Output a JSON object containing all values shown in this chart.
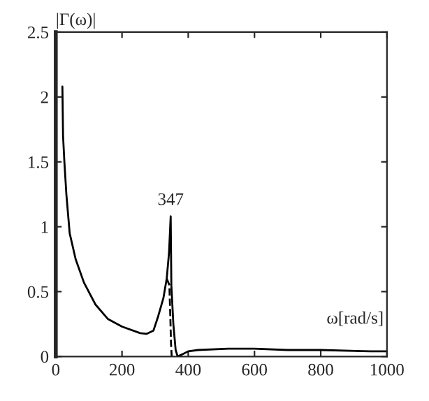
{
  "chart_data": {
    "type": "line",
    "xlabel": "ω[rad/s]",
    "ylabel": "|Γ(ω)|",
    "series": [
      {
        "color": "#000000",
        "line_style": "solid",
        "x": [
          20,
          22,
          26,
          32,
          42,
          60,
          85,
          120,
          157,
          200,
          255,
          275,
          295,
          308,
          325,
          335,
          342,
          347,
          349,
          355,
          362,
          368,
          385,
          400,
          430,
          520,
          600,
          700,
          800,
          950,
          1000
        ],
        "values": [
          2.08,
          1.7,
          1.5,
          1.25,
          0.95,
          0.75,
          0.57,
          0.4,
          0.29,
          0.23,
          0.18,
          0.175,
          0.2,
          0.3,
          0.45,
          0.6,
          0.8,
          1.08,
          0.55,
          0.25,
          0.05,
          0.0,
          0.02,
          0.04,
          0.05,
          0.06,
          0.06,
          0.05,
          0.05,
          0.04,
          0.04
        ]
      },
      {
        "color": "#000000",
        "line_style": "dashed",
        "x": [
          335,
          343,
          346,
          348,
          350
        ],
        "values": [
          0.6,
          0.55,
          0.3,
          0.1,
          0.0
        ]
      }
    ],
    "annotations": [
      {
        "text": "347",
        "x": 347,
        "y": 1.08
      }
    ],
    "xlim": [
      0,
      1000
    ],
    "ylim": [
      0,
      2.5
    ],
    "xticks": [
      0,
      200,
      400,
      600,
      800,
      1000
    ],
    "yticks": [
      0,
      0.5,
      1,
      1.5,
      2,
      2.5
    ],
    "grid": false,
    "legend": false
  }
}
